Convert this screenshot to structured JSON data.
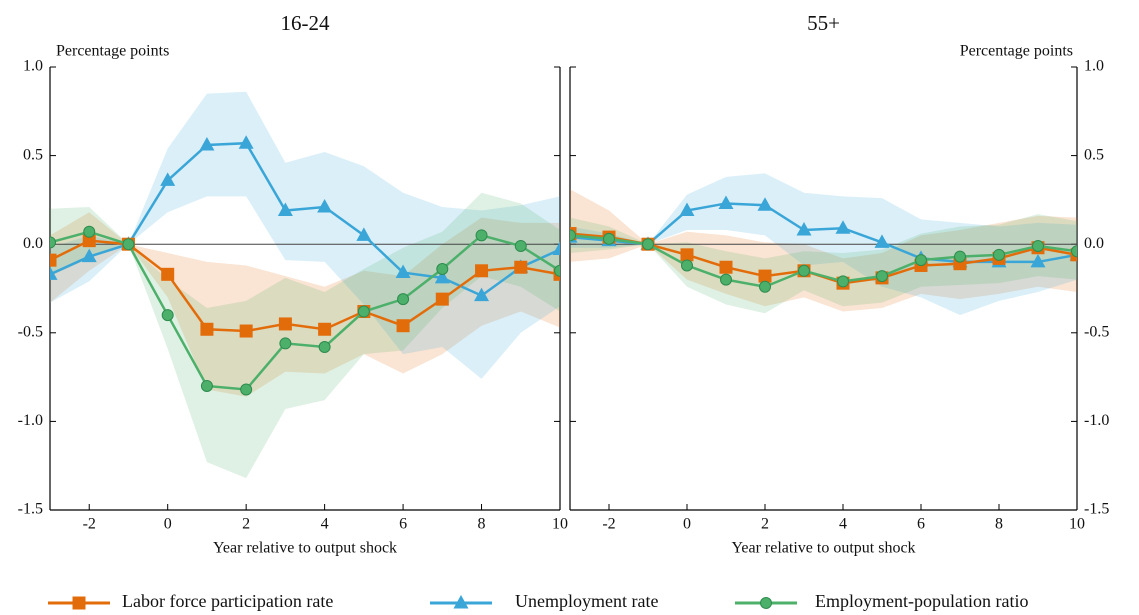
{
  "chart_data": [
    {
      "type": "line",
      "title": "16-24",
      "ylabel": "Percentage points",
      "xlabel": "Year relative to output shock",
      "yaxis_side": "left",
      "x": [
        -3,
        -2,
        -1,
        0,
        1,
        2,
        3,
        4,
        5,
        6,
        7,
        8,
        9,
        10
      ],
      "xlim": [
        -3,
        10
      ],
      "xticks": [
        -2,
        0,
        2,
        4,
        6,
        8,
        10
      ],
      "ylim": [
        -1.5,
        1.0
      ],
      "yticks": [
        {
          "value": 1.0,
          "label": "1.0"
        },
        0.5,
        {
          "value": 0,
          "label": "0.0"
        },
        -0.5,
        {
          "value": -1.0,
          "label": "-1.0"
        },
        -1.5
      ],
      "hline": 0,
      "series": [
        {
          "name": "Labor force participation rate",
          "color": "#e36c0a",
          "marker": "square",
          "values": [
            -0.09,
            0.02,
            0,
            -0.17,
            -0.48,
            -0.49,
            -0.45,
            -0.48,
            -0.38,
            -0.46,
            -0.31,
            -0.15,
            -0.13,
            -0.17
          ],
          "upper": [
            0.05,
            0.18,
            0,
            -0.05,
            -0.1,
            -0.12,
            -0.18,
            -0.24,
            -0.15,
            -0.18,
            0.0,
            0.15,
            0.12,
            0.12
          ],
          "lower": [
            -0.33,
            -0.15,
            0,
            -0.3,
            -0.82,
            -0.86,
            -0.72,
            -0.73,
            -0.62,
            -0.73,
            -0.62,
            -0.46,
            -0.38,
            -0.47
          ]
        },
        {
          "name": "Unemployment rate",
          "color": "#3aa6d8",
          "marker": "triangle",
          "values": [
            -0.17,
            -0.07,
            0,
            0.36,
            0.56,
            0.57,
            0.19,
            0.21,
            0.05,
            -0.16,
            -0.19,
            -0.29,
            -0.13,
            -0.03
          ],
          "upper": [
            -0.02,
            0.05,
            0,
            0.54,
            0.85,
            0.86,
            0.46,
            0.52,
            0.44,
            0.29,
            0.21,
            0.19,
            0.22,
            0.27
          ],
          "lower": [
            -0.33,
            -0.21,
            0,
            0.18,
            0.27,
            0.27,
            -0.09,
            -0.1,
            -0.34,
            -0.62,
            -0.58,
            -0.76,
            -0.5,
            -0.35
          ]
        },
        {
          "name": "Employment-population ratio",
          "color": "#4cb06a",
          "marker": "circle",
          "values": [
            0.01,
            0.07,
            0,
            -0.4,
            -0.8,
            -0.82,
            -0.56,
            -0.58,
            -0.38,
            -0.31,
            -0.14,
            0.05,
            -0.01,
            -0.15
          ],
          "upper": [
            0.2,
            0.21,
            0,
            -0.2,
            -0.36,
            -0.32,
            -0.19,
            -0.27,
            -0.14,
            -0.02,
            0.07,
            0.29,
            0.23,
            0.08
          ],
          "lower": [
            -0.18,
            -0.08,
            0,
            -0.59,
            -1.23,
            -1.32,
            -0.93,
            -0.88,
            -0.62,
            -0.6,
            -0.36,
            -0.18,
            -0.24,
            -0.38
          ]
        }
      ]
    },
    {
      "type": "line",
      "title": "55+",
      "ylabel": "Percentage points",
      "xlabel": "Year relative to output shock",
      "yaxis_side": "right",
      "x": [
        -3,
        -2,
        -1,
        0,
        1,
        2,
        3,
        4,
        5,
        6,
        7,
        8,
        9,
        10
      ],
      "xlim": [
        -3,
        10
      ],
      "xticks": [
        -2,
        0,
        2,
        4,
        6,
        8,
        10
      ],
      "ylim": [
        -1.5,
        1.0
      ],
      "yticks": [
        {
          "value": 1.0,
          "label": "1.0"
        },
        0.5,
        {
          "value": 0,
          "label": "0.0"
        },
        -0.5,
        {
          "value": -1.0,
          "label": "-1.0"
        },
        -1.5
      ],
      "hline": 0,
      "series": [
        {
          "color": "#e36c0a",
          "marker": "square",
          "values": [
            0.06,
            0.04,
            0,
            -0.06,
            -0.13,
            -0.18,
            -0.15,
            -0.22,
            -0.19,
            -0.12,
            -0.11,
            -0.08,
            -0.02,
            -0.06
          ],
          "upper": [
            0.31,
            0.19,
            0,
            0.07,
            0.05,
            0.01,
            0.0,
            -0.08,
            -0.05,
            0.05,
            0.08,
            0.12,
            0.16,
            0.15
          ],
          "lower": [
            -0.1,
            -0.08,
            0,
            -0.2,
            -0.28,
            -0.35,
            -0.3,
            -0.38,
            -0.36,
            -0.28,
            -0.31,
            -0.28,
            -0.24,
            -0.27
          ]
        },
        {
          "color": "#3aa6d8",
          "marker": "triangle",
          "values": [
            0.04,
            0.02,
            0,
            0.19,
            0.23,
            0.22,
            0.08,
            0.09,
            0.01,
            -0.08,
            -0.1,
            -0.1,
            -0.1,
            -0.06
          ],
          "upper": [
            0.1,
            0.06,
            0,
            0.28,
            0.38,
            0.4,
            0.29,
            0.27,
            0.26,
            0.14,
            0.12,
            0.1,
            0.12,
            0.11
          ],
          "lower": [
            -0.02,
            -0.02,
            0,
            0.08,
            0.08,
            0.05,
            -0.12,
            -0.1,
            -0.24,
            -0.3,
            -0.4,
            -0.32,
            -0.27,
            -0.2
          ]
        },
        {
          "color": "#4cb06a",
          "marker": "circle",
          "values": [
            0.05,
            0.03,
            0,
            -0.12,
            -0.2,
            -0.24,
            -0.15,
            -0.21,
            -0.18,
            -0.09,
            -0.07,
            -0.06,
            -0.01,
            -0.04
          ],
          "upper": [
            0.15,
            0.1,
            0,
            0.01,
            -0.04,
            -0.08,
            -0.04,
            -0.05,
            -0.03,
            0.06,
            0.1,
            0.11,
            0.17,
            0.13
          ],
          "lower": [
            -0.05,
            -0.03,
            0,
            -0.24,
            -0.34,
            -0.39,
            -0.26,
            -0.35,
            -0.33,
            -0.24,
            -0.23,
            -0.22,
            -0.18,
            -0.2
          ]
        }
      ]
    }
  ]
}
